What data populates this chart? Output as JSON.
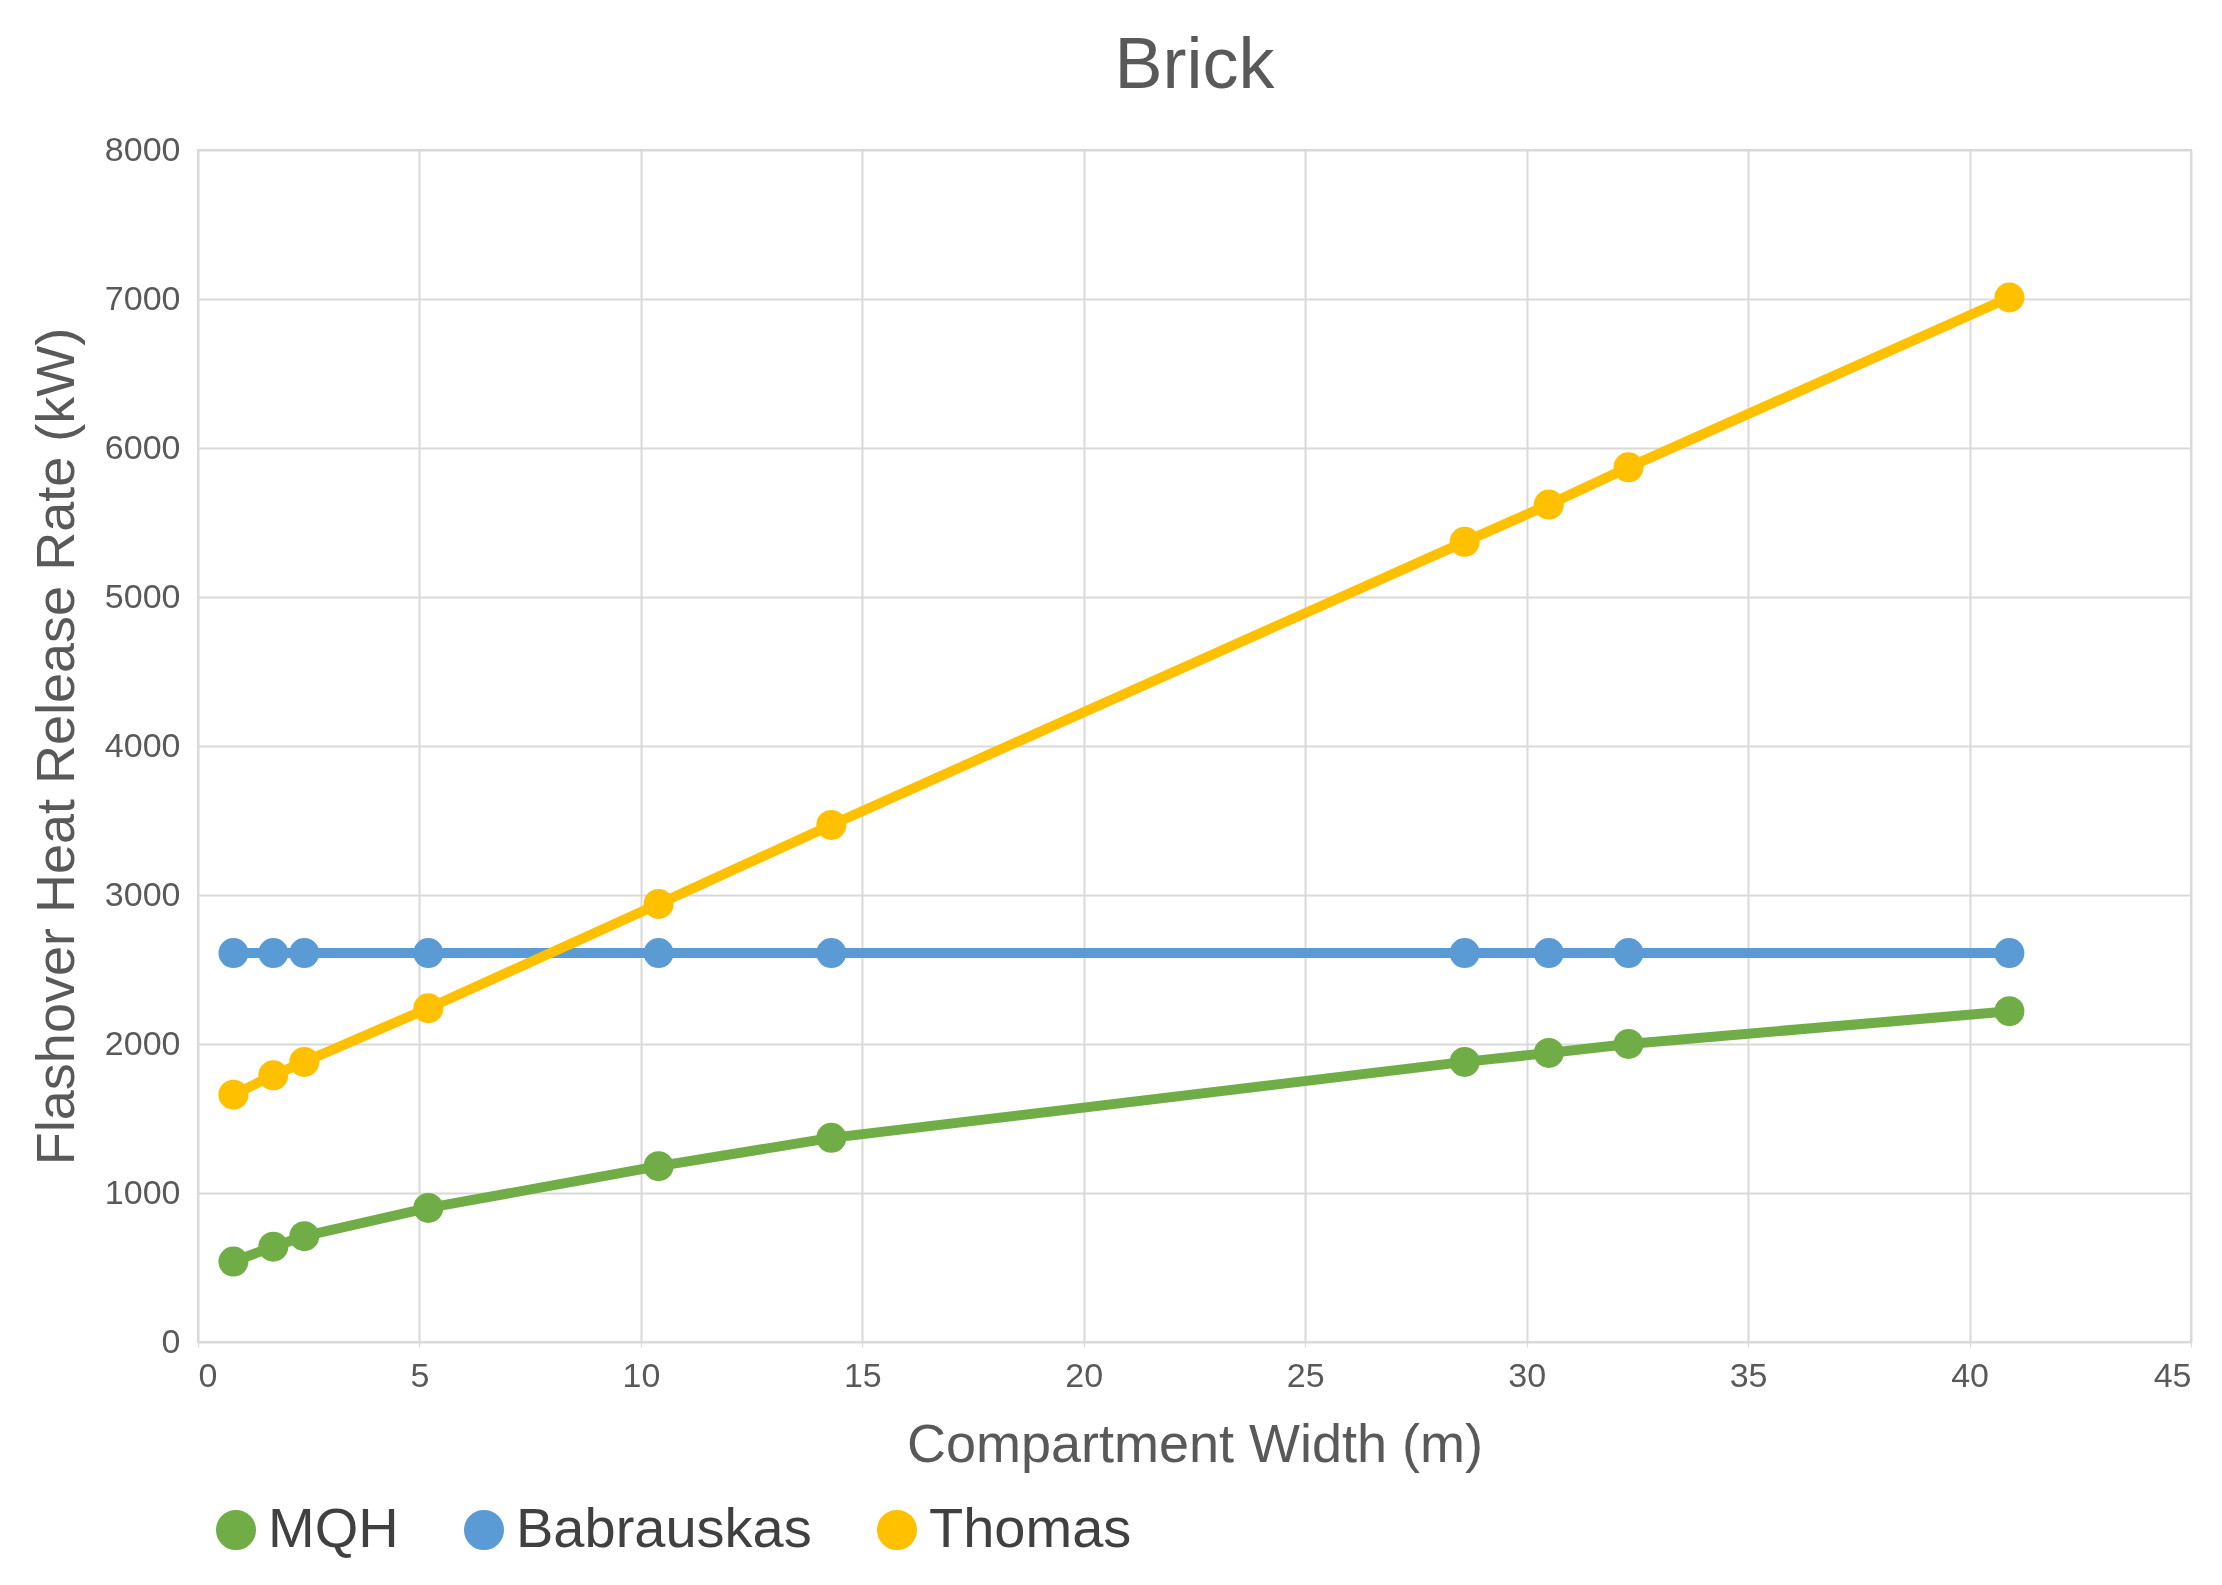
{
  "chart_data": {
    "type": "line",
    "title": "Brick",
    "xlabel": "Compartment Width (m)",
    "ylabel": "Flashover Heat Release Rate (kW)",
    "x": [
      0.8,
      1.7,
      2.4,
      5.2,
      10.4,
      14.3,
      28.6,
      30.5,
      32.3,
      40.9
    ],
    "series": [
      {
        "name": "MQH",
        "color": "#70ad47",
        "values": [
          540,
          640,
          710,
          900,
          1180,
          1370,
          1880,
          1940,
          2000,
          2220
        ]
      },
      {
        "name": "Babrauskas",
        "color": "#5b9bd5",
        "values": [
          2610,
          2610,
          2610,
          2610,
          2610,
          2610,
          2610,
          2610,
          2610,
          2610
        ]
      },
      {
        "name": "Thomas",
        "color": "#ffc000",
        "values": [
          1660,
          1790,
          1880,
          2240,
          2940,
          3470,
          5370,
          5620,
          5870,
          7010
        ]
      }
    ],
    "xlim": [
      0,
      45
    ],
    "xticks": [
      0,
      5,
      10,
      15,
      20,
      25,
      30,
      35,
      40,
      45
    ],
    "ylim": [
      0,
      8000
    ],
    "yticks": [
      0,
      1000,
      2000,
      3000,
      4000,
      5000,
      6000,
      7000,
      8000
    ],
    "grid": true,
    "legend": "bottom",
    "marker": "circle",
    "line_style": "solid"
  }
}
